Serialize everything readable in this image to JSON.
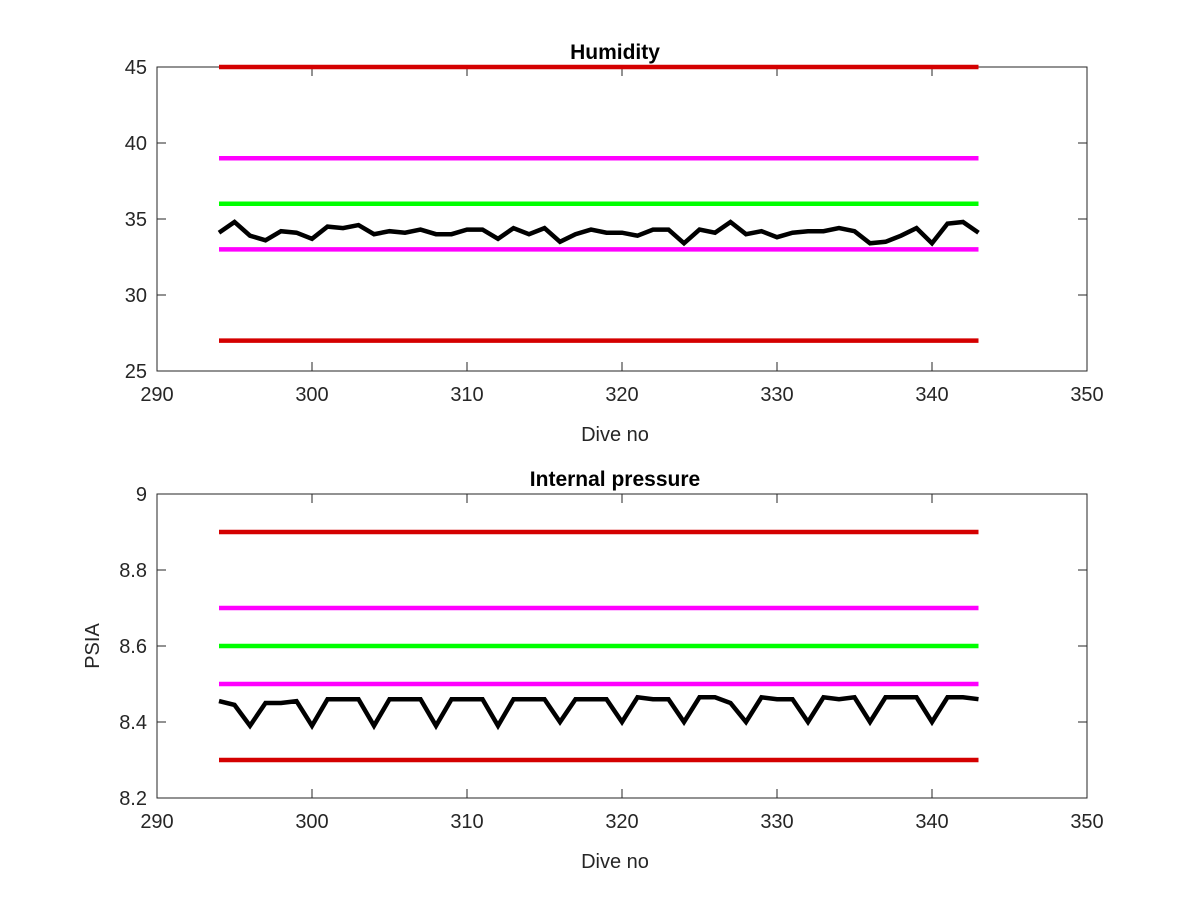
{
  "chart_data": [
    {
      "type": "line",
      "title": "Humidity",
      "xlabel": "Dive no",
      "ylabel": "",
      "xlim": [
        290,
        350
      ],
      "ylim": [
        25,
        45
      ],
      "xticks": [
        290,
        300,
        310,
        320,
        330,
        340,
        350
      ],
      "yticks": [
        25,
        30,
        35,
        40,
        45
      ],
      "grid": false,
      "thresholds": [
        {
          "y": 45,
          "color": "#d40000",
          "x": [
            294,
            343
          ]
        },
        {
          "y": 39,
          "color": "#ff00ff",
          "x": [
            294,
            343
          ]
        },
        {
          "y": 36,
          "color": "#00ff00",
          "x": [
            294,
            343
          ]
        },
        {
          "y": 33,
          "color": "#ff00ff",
          "x": [
            294,
            343
          ]
        },
        {
          "y": 27,
          "color": "#d40000",
          "x": [
            294,
            343
          ]
        }
      ],
      "series": [
        {
          "color": "#000000",
          "x": [
            294,
            295,
            296,
            297,
            298,
            299,
            300,
            301,
            302,
            303,
            304,
            305,
            306,
            307,
            308,
            309,
            310,
            311,
            312,
            313,
            314,
            315,
            316,
            317,
            318,
            319,
            320,
            321,
            322,
            323,
            324,
            325,
            326,
            327,
            328,
            329,
            330,
            331,
            332,
            333,
            334,
            335,
            336,
            337,
            338,
            339,
            340,
            341,
            342,
            343
          ],
          "y": [
            34.1,
            34.8,
            33.9,
            33.6,
            34.2,
            34.1,
            33.7,
            34.5,
            34.4,
            34.6,
            34.0,
            34.2,
            34.1,
            34.3,
            34.0,
            34.0,
            34.3,
            34.3,
            33.7,
            34.4,
            34.0,
            34.4,
            33.5,
            34.0,
            34.3,
            34.1,
            34.1,
            33.9,
            34.3,
            34.3,
            33.4,
            34.3,
            34.1,
            34.8,
            34.0,
            34.2,
            33.8,
            34.1,
            34.2,
            34.2,
            34.4,
            34.2,
            33.4,
            33.5,
            33.9,
            34.4,
            33.4,
            34.7,
            34.8,
            34.1
          ]
        }
      ]
    },
    {
      "type": "line",
      "title": "Internal pressure",
      "xlabel": "Dive no",
      "ylabel": "PSIA",
      "xlim": [
        290,
        350
      ],
      "ylim": [
        8.2,
        9
      ],
      "xticks": [
        290,
        300,
        310,
        320,
        330,
        340,
        350
      ],
      "yticks": [
        8.2,
        8.4,
        8.6,
        8.8,
        9
      ],
      "ytick_labels": [
        "8.2",
        "8.4",
        "8.6",
        "8.8",
        "9"
      ],
      "grid": false,
      "thresholds": [
        {
          "y": 8.9,
          "color": "#d40000",
          "x": [
            294,
            343
          ]
        },
        {
          "y": 8.7,
          "color": "#ff00ff",
          "x": [
            294,
            343
          ]
        },
        {
          "y": 8.6,
          "color": "#00ff00",
          "x": [
            294,
            343
          ]
        },
        {
          "y": 8.5,
          "color": "#ff00ff",
          "x": [
            294,
            343
          ]
        },
        {
          "y": 8.3,
          "color": "#d40000",
          "x": [
            294,
            343
          ]
        }
      ],
      "series": [
        {
          "color": "#000000",
          "x": [
            294,
            295,
            296,
            297,
            298,
            299,
            300,
            301,
            302,
            303,
            304,
            305,
            306,
            307,
            308,
            309,
            310,
            311,
            312,
            313,
            314,
            315,
            316,
            317,
            318,
            319,
            320,
            321,
            322,
            323,
            324,
            325,
            326,
            327,
            328,
            329,
            330,
            331,
            332,
            333,
            334,
            335,
            336,
            337,
            338,
            339,
            340,
            341,
            342,
            343
          ],
          "y": [
            8.455,
            8.445,
            8.39,
            8.45,
            8.45,
            8.455,
            8.39,
            8.46,
            8.46,
            8.46,
            8.39,
            8.46,
            8.46,
            8.46,
            8.39,
            8.46,
            8.46,
            8.46,
            8.39,
            8.46,
            8.46,
            8.46,
            8.4,
            8.46,
            8.46,
            8.46,
            8.4,
            8.465,
            8.46,
            8.46,
            8.4,
            8.465,
            8.465,
            8.45,
            8.4,
            8.465,
            8.46,
            8.46,
            8.4,
            8.465,
            8.46,
            8.465,
            8.4,
            8.465,
            8.465,
            8.465,
            8.4,
            8.465,
            8.465,
            8.46
          ]
        }
      ]
    }
  ]
}
